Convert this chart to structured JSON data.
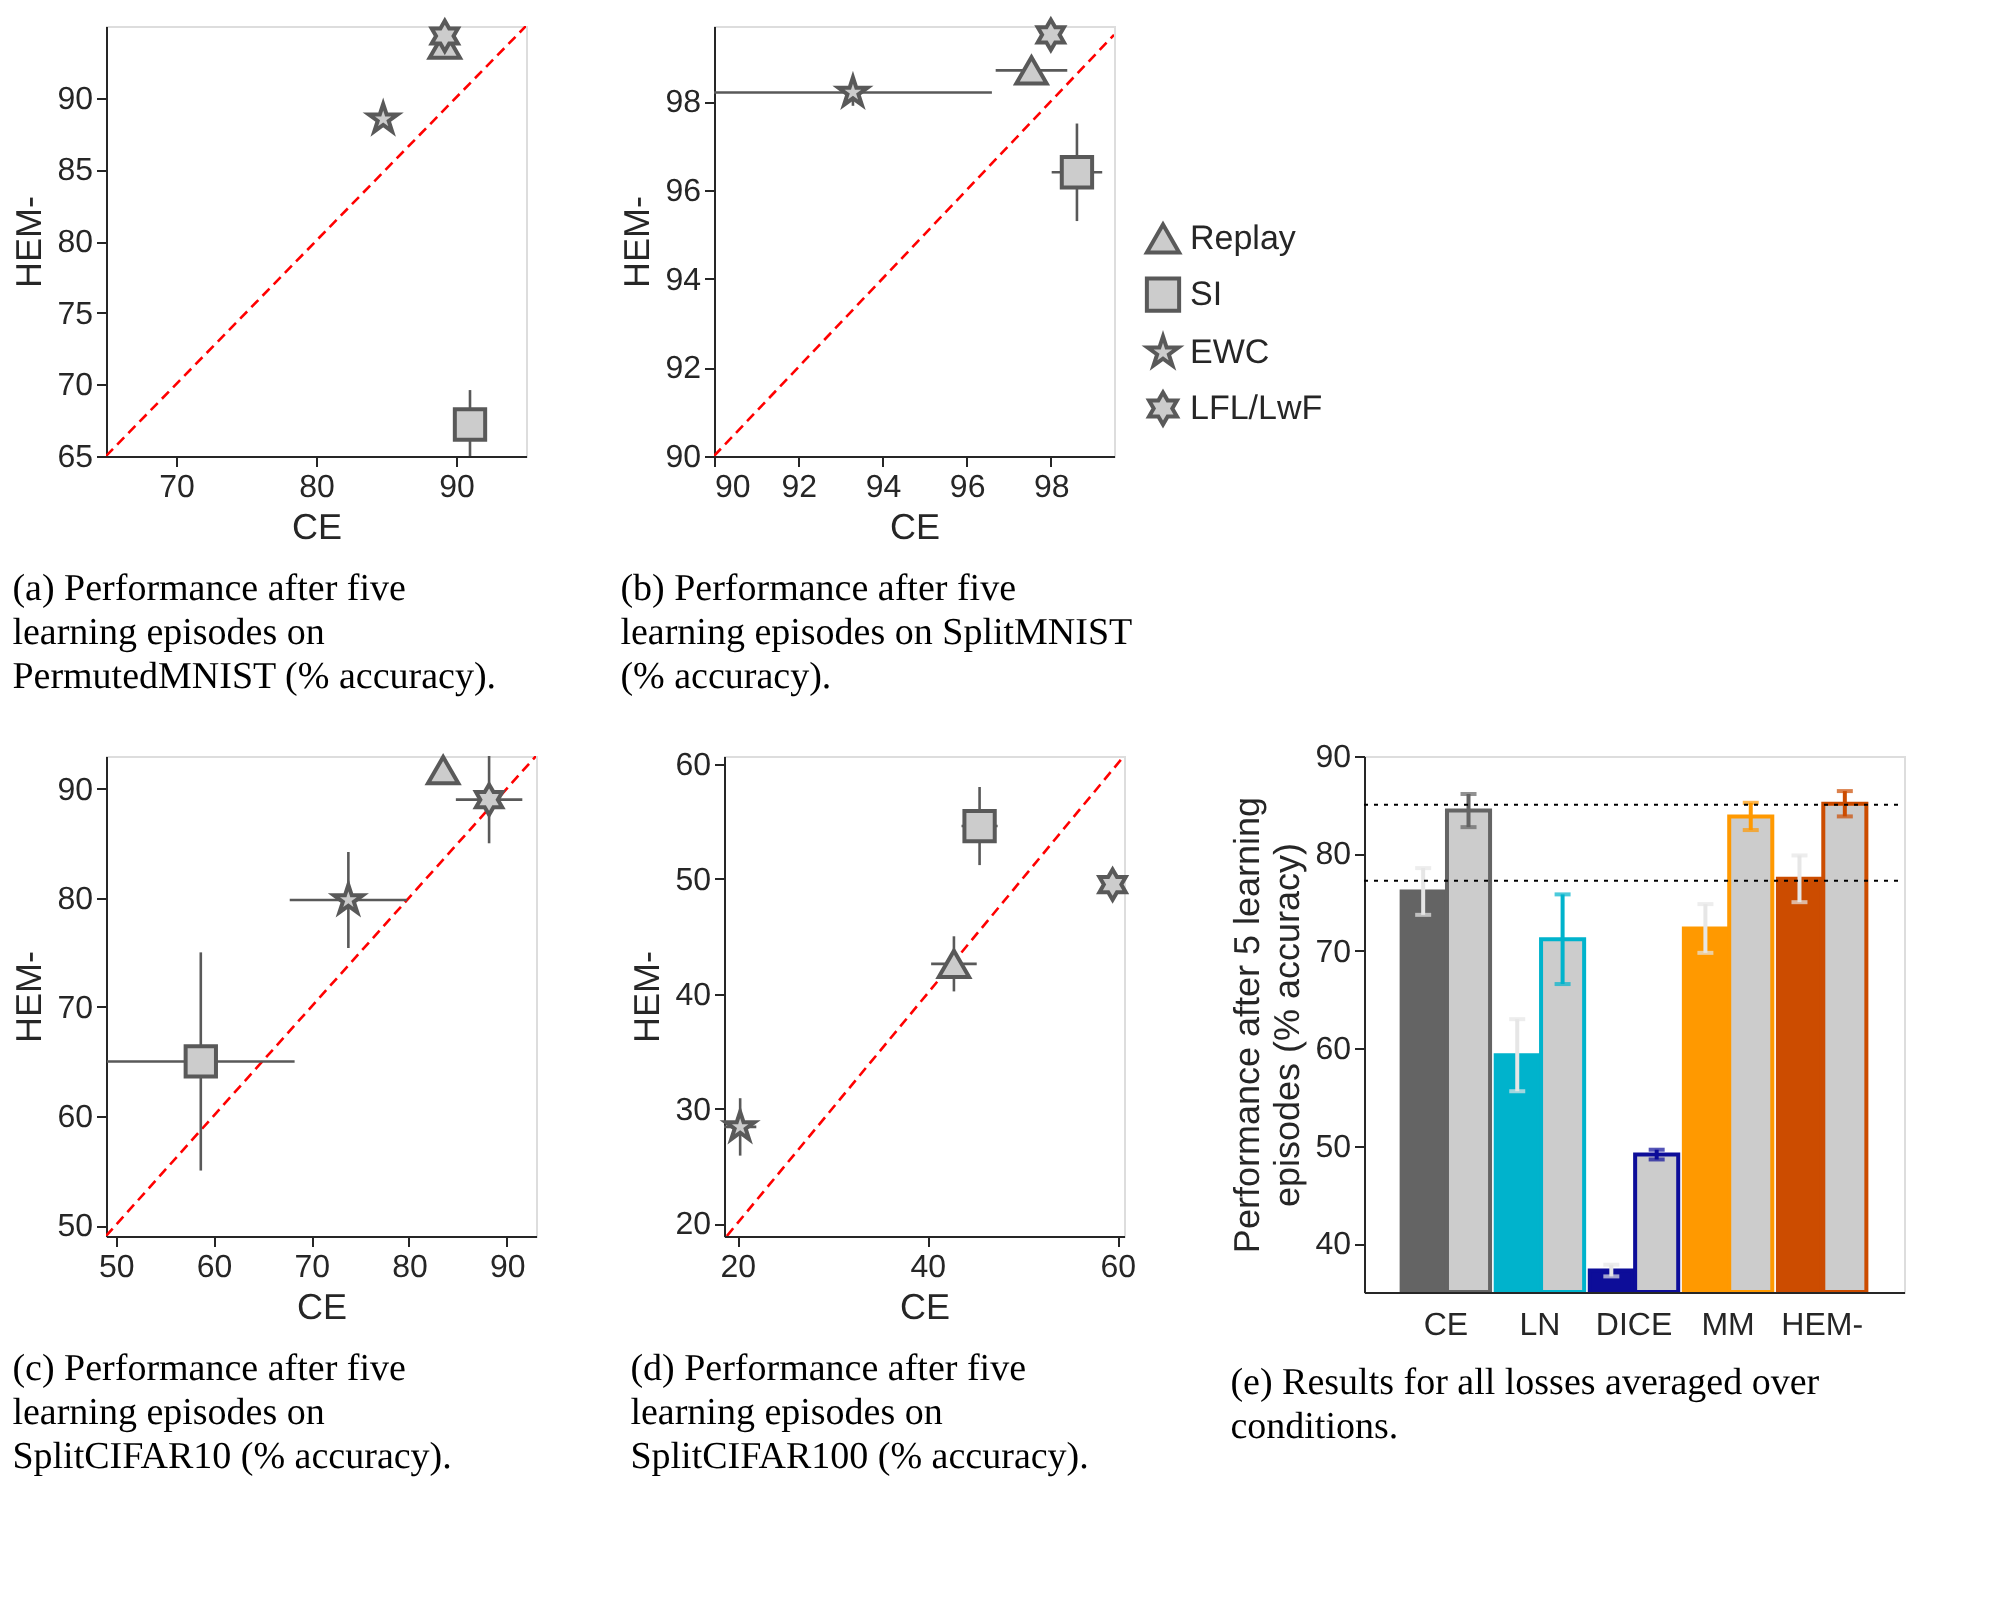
{
  "chart_data": [
    {
      "type": "scatter",
      "xlabel": "CE",
      "ylabel": "HEM-",
      "xlim": [
        65,
        95
      ],
      "ylim": [
        65,
        95
      ],
      "xticks": [
        70,
        80,
        90
      ],
      "yticks": [
        65,
        70,
        75,
        80,
        85,
        90
      ],
      "legend": false,
      "annotations": [
        "(a) Performance after five learning episodes on PermutedMNIST (% accuracy)."
      ],
      "series": [
        {
          "type": "line",
          "color": "#ff0000",
          "line_style": "dashed",
          "x": [
            65,
            95
          ],
          "values": [
            65,
            95
          ]
        },
        {
          "marker": "triangle",
          "color": "#cccccc",
          "x": [
            89.2
          ],
          "values": [
            93.7
          ]
        },
        {
          "marker": "square",
          "color": "#cccccc",
          "x": [
            91.0
          ],
          "values": [
            67.2
          ],
          "errors": [
            2.4
          ],
          "xerrors": [
            1.1
          ]
        },
        {
          "marker": "star",
          "color": "#cccccc",
          "x": [
            84.8
          ],
          "values": [
            88.5
          ]
        },
        {
          "color": "#cccccc",
          "x": [
            89.2
          ],
          "values": [
            94.3
          ]
        }
      ]
    },
    {
      "type": "scatter",
      "xlabel": "CE",
      "ylabel": "HEM-",
      "xlim": [
        90,
        99.5
      ],
      "ylim": [
        90,
        99.7
      ],
      "xticks": [
        90,
        92,
        94,
        96,
        98
      ],
      "yticks": [
        90,
        92,
        94,
        96,
        98
      ],
      "legend": "right",
      "annotations": [
        "(b) Performance after five learning episodes on SplitMNIST (% accuracy)."
      ],
      "series": [
        {
          "type": "line",
          "color": "#ff0000",
          "line_style": "dashed",
          "x": [
            90,
            99.5
          ],
          "values": [
            90,
            99.5
          ]
        },
        {
          "name": "Replay",
          "marker": "triangle",
          "color": "#cccccc",
          "x": [
            97.54
          ],
          "values": [
            98.7
          ],
          "errors": [
            0.2
          ],
          "xerrors": [
            0.85
          ]
        },
        {
          "name": "SI",
          "marker": "square",
          "color": "#cccccc",
          "x": [
            98.62
          ],
          "values": [
            96.4
          ],
          "errors": [
            1.1
          ],
          "xerrors": [
            0.6
          ]
        },
        {
          "name": "EWC",
          "marker": "star",
          "color": "#cccccc",
          "x": [
            93.3
          ],
          "values": [
            98.2
          ],
          "errors": [
            0.3
          ],
          "xerrors": [
            3.3
          ]
        },
        {
          "name": "LFL/LwF",
          "color": "#cccccc",
          "x": [
            98.0
          ],
          "values": [
            99.5
          ]
        }
      ]
    },
    {
      "type": "scatter",
      "xlabel": "CE",
      "ylabel": "HEM-",
      "xlim": [
        49,
        93
      ],
      "ylim": [
        49,
        93
      ],
      "xticks": [
        50,
        60,
        70,
        80,
        90
      ],
      "yticks": [
        50,
        60,
        70,
        80,
        90
      ],
      "legend": false,
      "annotations": [
        "(c) Performance after five learning episodes on SplitCIFAR10 (% accuracy)."
      ],
      "series": [
        {
          "type": "line",
          "color": "#ff0000",
          "line_style": "dashed",
          "x": [
            49,
            93
          ],
          "values": [
            49,
            93
          ]
        },
        {
          "marker": "triangle",
          "color": "#cccccc",
          "x": [
            83.5
          ],
          "values": [
            91.7
          ]
        },
        {
          "marker": "square",
          "color": "#cccccc",
          "x": [
            58.7
          ],
          "values": [
            65.0
          ],
          "errors": [
            10
          ],
          "xerrors": [
            9.6
          ]
        },
        {
          "marker": "star",
          "color": "#cccccc",
          "x": [
            73.8
          ],
          "values": [
            79.8
          ],
          "errors": [
            4.4
          ],
          "xerrors": [
            6
          ]
        },
        {
          "color": "#cccccc",
          "x": [
            88.2
          ],
          "values": [
            89.0
          ],
          "errors": [
            4
          ],
          "xerrors": [
            3.4
          ]
        }
      ]
    },
    {
      "type": "scatter",
      "xlabel": "CE",
      "ylabel": "HEM-",
      "xlim": [
        18.6,
        60.7
      ],
      "ylim": [
        18.9,
        60.7
      ],
      "xticks": [
        20,
        40,
        60
      ],
      "yticks": [
        20,
        30,
        40,
        50,
        60
      ],
      "legend": false,
      "annotations": [
        "(d) Performance after five learning episodes on SplitCIFAR100 (% accuracy)."
      ],
      "series": [
        {
          "type": "line",
          "color": "#ff0000",
          "line_style": "dashed",
          "x": [
            18.9,
            60.7
          ],
          "values": [
            18.9,
            60.7
          ]
        },
        {
          "marker": "triangle",
          "color": "#cccccc",
          "x": [
            42.8
          ],
          "values": [
            42.6
          ],
          "errors": [
            2.4
          ],
          "xerrors": [
            2.4
          ]
        },
        {
          "marker": "square",
          "color": "#cccccc",
          "x": [
            45.5
          ],
          "values": [
            54.6
          ],
          "errors": [
            3.4
          ],
          "xerrors": [
            1.9
          ]
        },
        {
          "marker": "star",
          "color": "#cccccc",
          "x": [
            20.3
          ],
          "values": [
            28.4
          ],
          "errors": [
            2.5
          ],
          "xerrors": [
            1.7
          ]
        },
        {
          "color": "#cccccc",
          "x": [
            59.5
          ],
          "values": [
            49.5
          ]
        }
      ]
    },
    {
      "type": "bar",
      "ylabel": "Performance after 5 learning\nepisodes (% accuracy)",
      "categories": [
        "CE",
        "LN",
        "DICE",
        "MM",
        "HEM-"
      ],
      "ylim": [
        35,
        90
      ],
      "yticks": [
        40,
        50,
        60,
        70,
        80,
        90
      ],
      "annotations": [
        "(e) Results for all losses averaged over conditions."
      ],
      "ref_lines": [
        {
          "axis": "y",
          "value": 85.0,
          "color": "#000000",
          "line_style": "dotted"
        },
        {
          "axis": "y",
          "value": 77.2,
          "color": "#000000",
          "line_style": "dotted"
        }
      ],
      "series": [
        {
          "colors": [
            "#646464",
            "#00b3cc",
            "#0d0d99",
            "#ff9900",
            "#cc4c00"
          ],
          "values": [
            76.1,
            59.3,
            37.2,
            72.3,
            77.4
          ],
          "errors": [
            2.4,
            3.7,
            0.6,
            2.5,
            2.4
          ]
        },
        {
          "color": "#cccccc",
          "values": [
            84.4,
            71.2,
            49.1,
            83.8,
            85.1
          ],
          "errors": [
            1.7,
            4.6,
            0.5,
            1.4,
            1.3
          ]
        }
      ]
    }
  ]
}
